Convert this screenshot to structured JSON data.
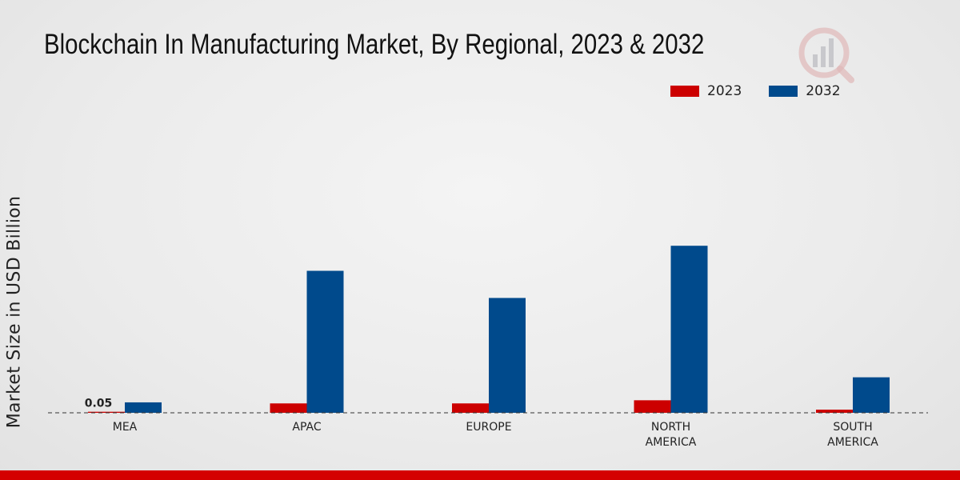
{
  "chart_data": {
    "type": "bar",
    "title": "Blockchain In Manufacturing Market, By Regional, 2023 & 2032",
    "xlabel": "",
    "ylabel": "Market Size in USD Billion",
    "categories": [
      "MEA",
      "APAC",
      "EUROPE",
      "NORTH AMERICA",
      "SOUTH AMERICA"
    ],
    "category_lines": [
      [
        "MEA"
      ],
      [
        "APAC"
      ],
      [
        "EUROPE"
      ],
      [
        "NORTH",
        "AMERICA"
      ],
      [
        "SOUTH",
        "AMERICA"
      ]
    ],
    "series": [
      {
        "name": "2023",
        "color": "#cc0000",
        "values": [
          0.05,
          0.45,
          0.45,
          0.6,
          0.15
        ]
      },
      {
        "name": "2032",
        "color": "#004a8c",
        "values": [
          0.5,
          6.8,
          5.5,
          8.0,
          1.7
        ]
      }
    ],
    "data_labels": [
      {
        "series": "2023",
        "category": "MEA",
        "text": "0.05"
      }
    ],
    "ylim": [
      0,
      12
    ],
    "grid": false,
    "legend_position": "top-right"
  }
}
